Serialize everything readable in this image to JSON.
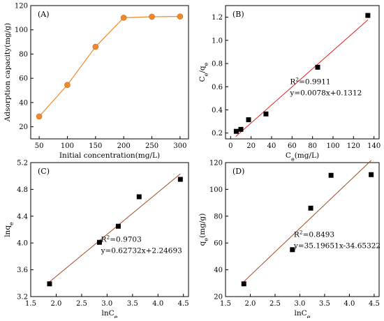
{
  "chart_data": [
    {
      "panel_label": "(A)",
      "type": "line",
      "xlabel": "Initial concentration(mg/L)",
      "ylabel": "Adsorption capacity(mg/g)",
      "x": [
        50,
        100,
        150,
        200,
        250,
        300
      ],
      "values": [
        28.5,
        54.5,
        86,
        110,
        110.8,
        111
      ],
      "xlim": [
        35,
        315
      ],
      "ylim": [
        10,
        120
      ],
      "xticks": [
        50,
        100,
        150,
        200,
        250,
        300
      ],
      "yticks": [
        20,
        40,
        60,
        80,
        100,
        120
      ],
      "marker": "circle",
      "color": "#ee8a2c",
      "annotations": []
    },
    {
      "panel_label": "(B)",
      "type": "scatter",
      "xlabel_main": "C",
      "xlabel_sub": "e",
      "xlabel_unit": "(mg/L)",
      "ylabel_parts": [
        {
          "t": "C",
          "s": "e"
        },
        {
          "t": "/q",
          "s": "e"
        }
      ],
      "x": [
        5.5,
        10,
        17.5,
        34.5,
        85,
        134
      ],
      "values": [
        0.215,
        0.232,
        0.315,
        0.365,
        0.768,
        1.215
      ],
      "xlim": [
        -5,
        145
      ],
      "ylim": [
        0.15,
        1.3
      ],
      "xticks": [
        0,
        20,
        40,
        60,
        80,
        100,
        120,
        140
      ],
      "yticks": [
        0.2,
        0.4,
        0.6,
        0.8,
        1.0,
        1.2
      ],
      "yticklabels": [
        "0.2",
        "0.4",
        "0.6",
        "0.8",
        "1.0",
        "1.2"
      ],
      "fit": {
        "slope": 0.0078,
        "intercept": 0.1312,
        "x_range": [
          5,
          134
        ]
      },
      "fit_color": "#e02020",
      "marker": "square",
      "r2_main": "R",
      "r2_sup": "2",
      "r2_value": "=0.9911",
      "equation": "y=0.0078x+0.1312"
    },
    {
      "panel_label": "(C)",
      "type": "scatter",
      "xlabel_main": "lnC",
      "xlabel_sub": "e",
      "ylabel_main": "lnq",
      "ylabel_sub": "e",
      "x": [
        1.87,
        2.85,
        3.22,
        3.63,
        4.44
      ],
      "values": [
        3.39,
        4.01,
        4.25,
        4.69,
        4.95
      ],
      "xlim": [
        1.5,
        4.6
      ],
      "ylim": [
        3.2,
        5.2
      ],
      "xticks": [
        1.5,
        2.0,
        2.5,
        3.0,
        3.5,
        4.0,
        4.5
      ],
      "xticklabels": [
        "1.5",
        "2.0",
        "2.5",
        "3.0",
        "3.5",
        "4.0",
        "4.5"
      ],
      "yticks": [
        3.2,
        3.6,
        4.0,
        4.4,
        4.8,
        5.2
      ],
      "yticklabels": [
        "3.2",
        "3.6",
        "4.0",
        "4.4",
        "4.8",
        "5.2"
      ],
      "fit": {
        "slope": 0.62732,
        "intercept": 2.24693,
        "x_range": [
          1.87,
          4.44
        ]
      },
      "fit_color": "#a04a20",
      "marker": "square",
      "r2_main": "R",
      "r2_sup": "2",
      "r2_value": "=0.9703",
      "equation": "y=0.62732x+2.24693"
    },
    {
      "panel_label": "(D)",
      "type": "scatter",
      "xlabel_main": "lnC",
      "xlabel_sub": "e",
      "ylabel_main": "q",
      "ylabel_sub": "e",
      "ylabel_unit": "(mg/g)",
      "x": [
        1.87,
        2.85,
        3.22,
        3.63,
        4.44
      ],
      "values": [
        29.5,
        55,
        86,
        110.5,
        111
      ],
      "xlim": [
        1.5,
        4.6
      ],
      "ylim": [
        20,
        120
      ],
      "xticks": [
        1.5,
        2.0,
        2.5,
        3.0,
        3.5,
        4.0,
        4.5
      ],
      "xticklabels": [
        "1.5",
        "2.0",
        "2.5",
        "3.0",
        "3.5",
        "4.0",
        "4.5"
      ],
      "yticks": [
        20,
        40,
        60,
        80,
        100,
        120
      ],
      "fit": {
        "slope": 35.19651,
        "intercept": -34.65322,
        "x_range": [
          1.87,
          4.44
        ]
      },
      "fit_color": "#a04a20",
      "marker": "square",
      "r2_main": "R",
      "r2_sup": "2",
      "r2_value": "=0.8493",
      "equation": "y=35.19651x-34.65322"
    }
  ]
}
